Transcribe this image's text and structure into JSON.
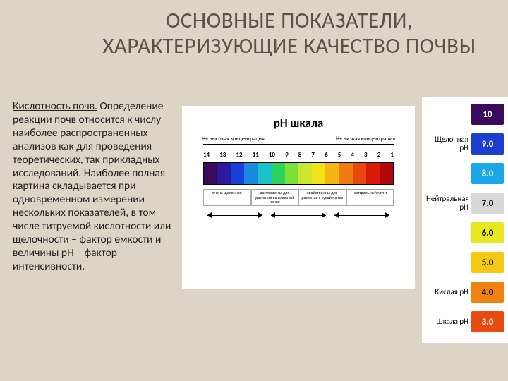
{
  "title": "ОСНОВНЫЕ ПОКАЗАТЕЛИ, ХАРАКТЕРИЗУЮЩИЕ КАЧЕСТВО ПОЧВЫ",
  "lead": "Кислотность почв.",
  "paragraph": "Определение реакции почв относится к числу наиболее распространенных анализов как для проведения теоретических, так прикладных исследований. Наиболее полная картина складывается при одновременном измерении нескольких показателей, в том числе титруемой кислотности или щелочности – фактор емкости и величины pH – фактор интенсивности.",
  "diagram": {
    "title": "pH шкала",
    "axis_left": "H+ высокая концентрация",
    "axis_right": "H+ низкая концентрация",
    "ticks": [
      "14",
      "13",
      "12",
      "11",
      "10",
      "9",
      "8",
      "7",
      "6",
      "5",
      "4",
      "3",
      "2",
      "1"
    ],
    "gradient_colors": [
      "#3a0b5c",
      "#2b1aa0",
      "#1740d8",
      "#1a8ae0",
      "#18c0c8",
      "#2bd45a",
      "#7de03a",
      "#c8e830",
      "#f2e21a",
      "#f5b514",
      "#f07c10",
      "#e8480c",
      "#d81a0a",
      "#b00808"
    ],
    "sub_labels": [
      "очень щелочная",
      "растворимы для растения во влажной почве",
      "свойственны для растения с сухой почве",
      "нейтральный грунт"
    ]
  },
  "scale": {
    "items": [
      {
        "label": "",
        "value": "10",
        "bg": "#3a0b5c",
        "fg": "#ffffff"
      },
      {
        "label": "Щелочная pH",
        "value": "9.0",
        "bg": "#1a3fd0",
        "fg": "#ffffff"
      },
      {
        "label": "",
        "value": "8.0",
        "bg": "#1aa8e8",
        "fg": "#ffffff"
      },
      {
        "label": "Нейтральная pH",
        "value": "7.0",
        "bg": "#d8d8d8",
        "fg": "#000000"
      },
      {
        "label": "",
        "value": "6.0",
        "bg": "#e8e820",
        "fg": "#000000"
      },
      {
        "label": "",
        "value": "5.0",
        "bg": "#f5c814",
        "fg": "#000000"
      },
      {
        "label": "Кислая pH",
        "value": "4.0",
        "bg": "#f08210",
        "fg": "#000000"
      },
      {
        "label": "Шкала pH",
        "value": "3.0",
        "bg": "#e84a10",
        "fg": "#ffffff"
      }
    ]
  }
}
